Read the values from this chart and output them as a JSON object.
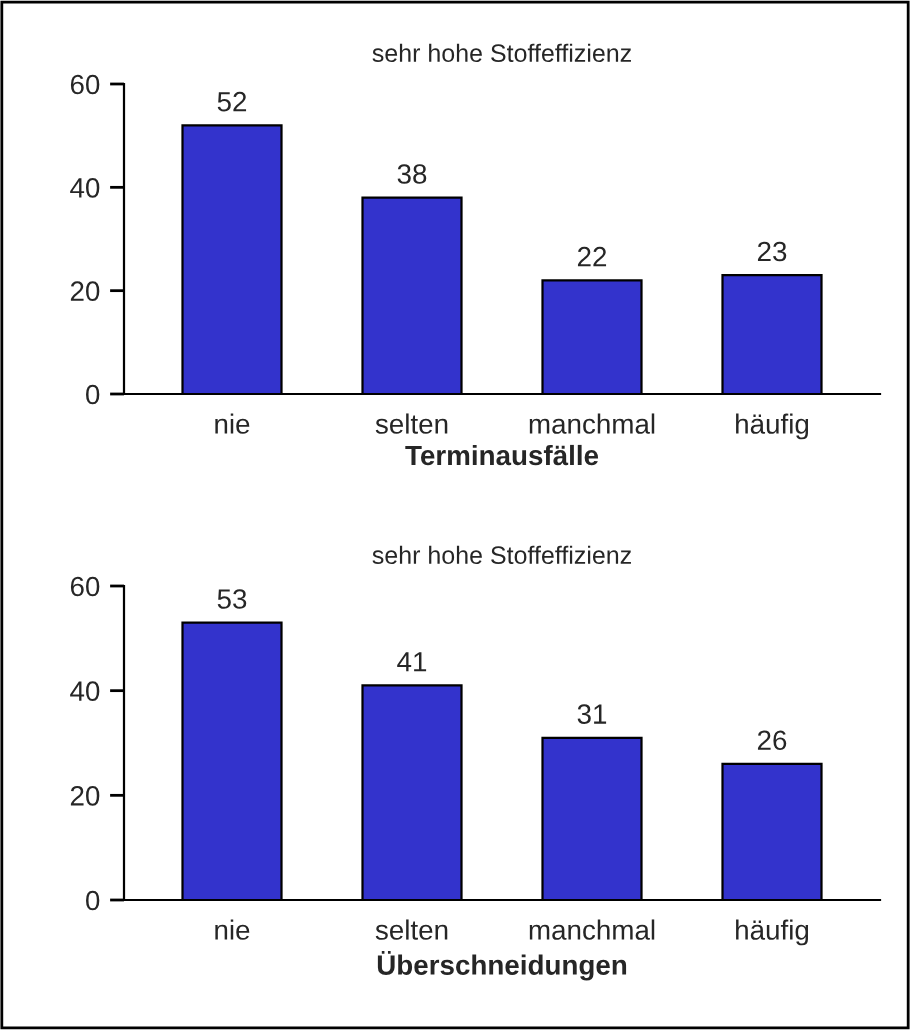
{
  "chart_data": [
    {
      "type": "bar",
      "title": "sehr hohe Stoffeffizienz",
      "xlabel": "Terminausfälle",
      "categories": [
        "nie",
        "selten",
        "manchmal",
        "häufig"
      ],
      "values": [
        52,
        38,
        22,
        23
      ],
      "color": "#3333cc",
      "ylim": [
        0,
        60
      ],
      "yticks": [
        0,
        20,
        40,
        60
      ],
      "data_labels": true,
      "grid": false,
      "legend": false
    },
    {
      "type": "bar",
      "title": "sehr hohe Stoffeffizienz",
      "xlabel": "Überschneidungen",
      "categories": [
        "nie",
        "selten",
        "manchmal",
        "häufig"
      ],
      "values": [
        53,
        41,
        31,
        26
      ],
      "color": "#3333cc",
      "ylim": [
        0,
        60
      ],
      "yticks": [
        0,
        20,
        40,
        60
      ],
      "data_labels": true,
      "grid": false,
      "legend": false
    }
  ]
}
